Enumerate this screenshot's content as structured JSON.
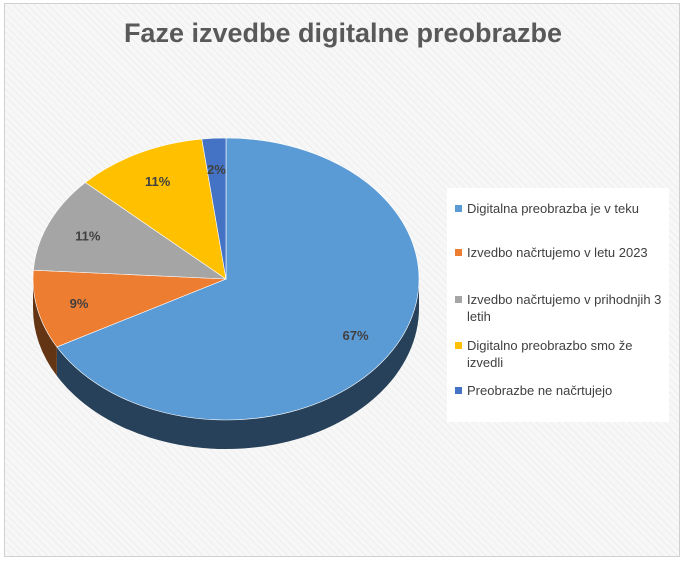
{
  "chart_data": {
    "type": "pie",
    "title": "Faze izvedbe digitalne preobrazbe",
    "categories": [
      "Digitalna preobrazba je v teku",
      "Izvedbo načrtujemo v letu 2023",
      "Izvedbo načrtujemo v prihodnjih 3 letih",
      "Digitalno preobrazbo smo že izvedli",
      "Preobrazbe ne načrtujejo"
    ],
    "values": [
      67,
      9,
      11,
      11,
      2
    ],
    "value_labels": [
      "67%",
      "9%",
      "11%",
      "11%",
      "2%"
    ],
    "colors": [
      "#5b9bd5",
      "#ed7d31",
      "#a5a5a5",
      "#ffc000",
      "#4472c4"
    ],
    "legend_position": "right",
    "style": "3d"
  }
}
